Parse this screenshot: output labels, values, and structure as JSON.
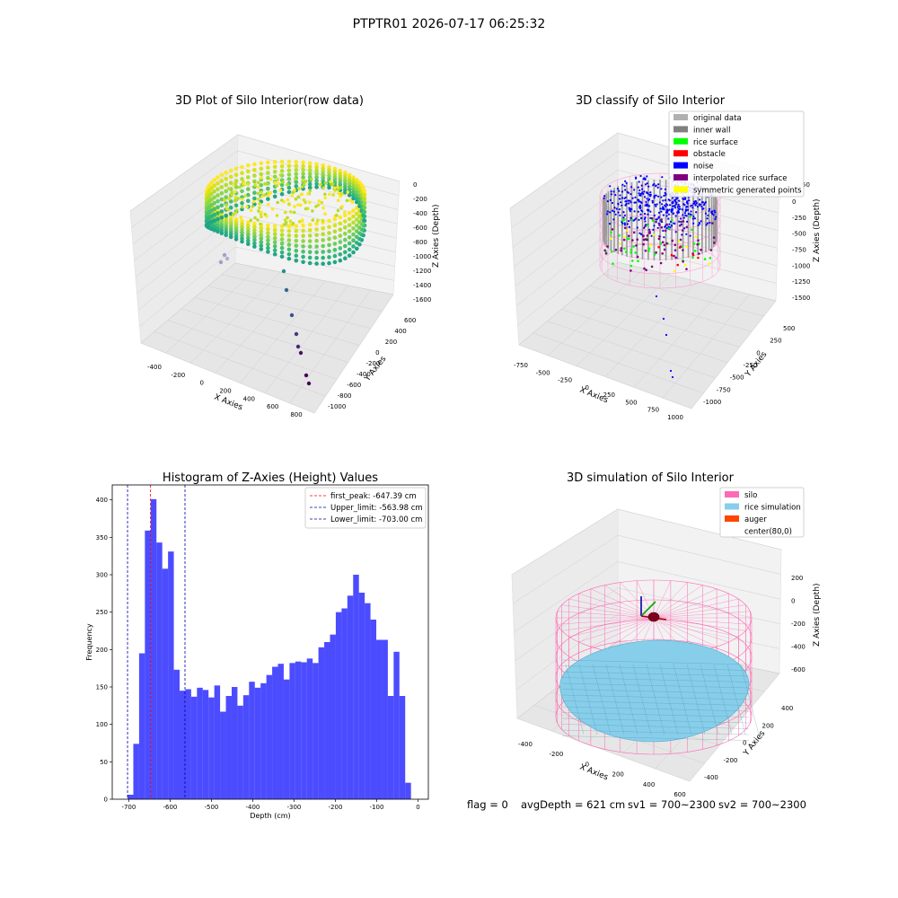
{
  "figure_title": "PTPTR01 2026-07-17 06:25:32",
  "status": {
    "flag": "flag = 0",
    "avg_depth": "avgDepth = 621 cm",
    "sv1": "sv1 = 700~2300",
    "sv2": "sv2 = 700~2300"
  },
  "chart_data": [
    {
      "type": "scatter",
      "title": "3D Plot of Silo Interior(row data)",
      "xlabel": "X Axies",
      "ylabel": "Y Axies",
      "zlabel": "Z Axies (Depth)",
      "x_ticks": [
        "-400",
        "-200",
        "0",
        "200",
        "400",
        "600",
        "800"
      ],
      "y_ticks": [
        "-1000",
        "-800",
        "-600",
        "-400",
        "-200",
        "0",
        "200",
        "400",
        "600"
      ],
      "z_ticks": [
        "0",
        "-200",
        "-400",
        "-600",
        "-800",
        "-1000",
        "-1200",
        "-1400",
        "-1600"
      ],
      "xlim": [
        -500,
        900
      ],
      "ylim": [
        -1000,
        600
      ],
      "zlim": [
        -1600,
        0
      ],
      "colormap": "viridis"
    },
    {
      "type": "scatter",
      "title": "3D classify of Silo Interior",
      "xlabel": "X Axies",
      "ylabel": "Y Axies",
      "zlabel": "Z Axies (Depth)",
      "x_ticks": [
        "-750",
        "-500",
        "-250",
        "0",
        "250",
        "500",
        "750",
        "1000"
      ],
      "y_ticks": [
        "-1000",
        "-750",
        "-500",
        "-250",
        "0",
        "250",
        "500"
      ],
      "z_ticks": [
        "0",
        "-250",
        "-500",
        "-750",
        "-1000",
        "-1250",
        "-1500"
      ],
      "z_top_partial": "50",
      "legend": [
        {
          "label": "original data",
          "color": "#b0b0b0"
        },
        {
          "label": "inner wall",
          "color": "#808080"
        },
        {
          "label": "rice surface",
          "color": "#00ff00"
        },
        {
          "label": "obstacle",
          "color": "#ff0000"
        },
        {
          "label": "noise",
          "color": "#0000ff"
        },
        {
          "label": "interpolated rice surface",
          "color": "#800080"
        },
        {
          "label": "symmetric generated points",
          "color": "#ffff00"
        }
      ]
    },
    {
      "type": "bar",
      "title": "Histogram of Z-Axies (Height) Values",
      "xlabel": "Depth (cm)",
      "ylabel": "Frequency",
      "xlim": [
        -740,
        25
      ],
      "ylim": [
        0,
        420
      ],
      "x_ticks": [
        -700,
        -600,
        -500,
        -400,
        -300,
        -200,
        -100,
        0
      ],
      "y_ticks": [
        0,
        50,
        100,
        150,
        200,
        250,
        300,
        350,
        400
      ],
      "bin_width": 14.0,
      "bin_start": -703,
      "values": [
        6,
        74,
        195,
        359,
        401,
        343,
        308,
        331,
        173,
        145,
        147,
        137,
        149,
        146,
        136,
        152,
        117,
        138,
        150,
        125,
        139,
        157,
        149,
        155,
        166,
        177,
        181,
        160,
        182,
        184,
        183,
        188,
        182,
        203,
        210,
        220,
        250,
        255,
        272,
        300,
        276,
        262,
        240,
        213,
        213,
        138,
        197,
        138,
        22
      ],
      "bar_color": "#0000ff",
      "vlines": [
        {
          "label": "first_peak: -647.39 cm",
          "x": -647.39,
          "color": "#ff0000"
        },
        {
          "label": "Upper_limit: -563.98 cm",
          "x": -563.98,
          "color": "#0000b0"
        },
        {
          "label": "Lower_limit: -703.00 cm",
          "x": -703.0,
          "color": "#0000b0"
        }
      ]
    },
    {
      "type": "surface",
      "title": "3D simulation of Silo Interior",
      "xlabel": "X Axies",
      "ylabel": "Y Axies",
      "zlabel": "Z Axies (Depth)",
      "x_ticks": [
        "-400",
        "-200",
        "0",
        "200",
        "400",
        "600"
      ],
      "y_ticks": [
        "-400",
        "-200",
        "0",
        "200",
        "400"
      ],
      "z_ticks": [
        "200",
        "0",
        "-200",
        "-400",
        "-600"
      ],
      "legend": [
        {
          "label": "silo",
          "color": "#ff69b4"
        },
        {
          "label": "rice simulation",
          "color": "#87ceeb"
        },
        {
          "label": "auger",
          "color": "#ff4500"
        },
        {
          "label": "center(80,0)",
          "color": "#ffffff"
        }
      ]
    }
  ]
}
